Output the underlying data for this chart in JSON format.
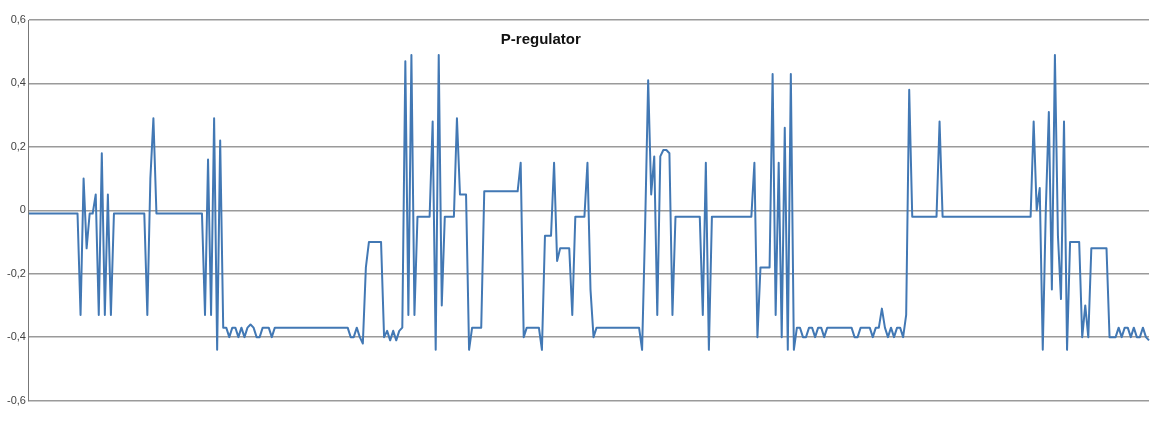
{
  "chart_data": {
    "type": "line",
    "title": "P-regulator",
    "categories": [
      null,
      null,
      null,
      null,
      null,
      null,
      null,
      null,
      null,
      null,
      null,
      null,
      null,
      null,
      null,
      null,
      null,
      null,
      null,
      null,
      null,
      null,
      null,
      null,
      null,
      null,
      null,
      null,
      null,
      null,
      null,
      null,
      null,
      null,
      null,
      null,
      null,
      null,
      null,
      null,
      null,
      null,
      null,
      null,
      null,
      null,
      null,
      null,
      null,
      null,
      null,
      null,
      null,
      null,
      null,
      null,
      null,
      null,
      null,
      null,
      null,
      null,
      null,
      null,
      null,
      null,
      null,
      null,
      null,
      null,
      null,
      null,
      null,
      null,
      null,
      null,
      null,
      null,
      null,
      null,
      null,
      null,
      null,
      null,
      null,
      null,
      null,
      null,
      null,
      null,
      null,
      null,
      null,
      null,
      null,
      null,
      null,
      null,
      null,
      null,
      null,
      null,
      null,
      null,
      null,
      null,
      null,
      null,
      null,
      null,
      null,
      null,
      null,
      null,
      null,
      null,
      null,
      null,
      null,
      null,
      null,
      null,
      null,
      null,
      null,
      null,
      null,
      null,
      null,
      null,
      null,
      null,
      null,
      null,
      null,
      null,
      null,
      null,
      null,
      null,
      null,
      null,
      null,
      null,
      null,
      null,
      null,
      null,
      null,
      null,
      null,
      null,
      null,
      null,
      null,
      null,
      null,
      null,
      null,
      null,
      null,
      null,
      null,
      null,
      null,
      null,
      null,
      null,
      null,
      null,
      null,
      null,
      null,
      null,
      null,
      null,
      null,
      null,
      null,
      null,
      null,
      null,
      null,
      null,
      null,
      null,
      null,
      null,
      null,
      null,
      null,
      null,
      null,
      null,
      null,
      null,
      null,
      null,
      null,
      null,
      null,
      null,
      null,
      null,
      null,
      null,
      null,
      null,
      null,
      null,
      null,
      null,
      null,
      null,
      null,
      null,
      null,
      null,
      null,
      null,
      null,
      null,
      null,
      null,
      null,
      null,
      null,
      null,
      null,
      null,
      null,
      null,
      null,
      null,
      null,
      null,
      null,
      null,
      null,
      null,
      null,
      null,
      null,
      null,
      null,
      null,
      null,
      null,
      null,
      null,
      null,
      null,
      null,
      null,
      null,
      null,
      null,
      null,
      null,
      null,
      null,
      null,
      null,
      null,
      null,
      null,
      null,
      null,
      null,
      null,
      null,
      null,
      null,
      null,
      null,
      null,
      null,
      null,
      null,
      null,
      null,
      null,
      null,
      null,
      null,
      null,
      null,
      null,
      null,
      null,
      null,
      null,
      null,
      null,
      null,
      null,
      null,
      null,
      null,
      null,
      null,
      null,
      null,
      null,
      null,
      null,
      null,
      null,
      null,
      null,
      null,
      null,
      null,
      null,
      null,
      null,
      null,
      null,
      null,
      null,
      null,
      null,
      null,
      null,
      null,
      null,
      null,
      null,
      null,
      null,
      null,
      null,
      null,
      null,
      null,
      null,
      null,
      null,
      null,
      null,
      null,
      null,
      null,
      null,
      null,
      null,
      null,
      null,
      null,
      null,
      null,
      null,
      null,
      null,
      null,
      null,
      null,
      null,
      null,
      null,
      null,
      null,
      null,
      null,
      null,
      null,
      null,
      null,
      null,
      null
    ],
    "values": [
      -0.01,
      -0.01,
      -0.01,
      -0.01,
      -0.01,
      -0.01,
      -0.01,
      -0.01,
      -0.01,
      -0.01,
      -0.01,
      -0.01,
      -0.01,
      -0.01,
      -0.01,
      -0.01,
      -0.01,
      -0.33,
      0.1,
      -0.12,
      -0.01,
      -0.01,
      0.05,
      -0.33,
      0.18,
      -0.33,
      0.05,
      -0.33,
      -0.01,
      -0.01,
      -0.01,
      -0.01,
      -0.01,
      -0.01,
      -0.01,
      -0.01,
      -0.01,
      -0.01,
      -0.01,
      -0.33,
      0.1,
      0.29,
      -0.01,
      -0.01,
      -0.01,
      -0.01,
      -0.01,
      -0.01,
      -0.01,
      -0.01,
      -0.01,
      -0.01,
      -0.01,
      -0.01,
      -0.01,
      -0.01,
      -0.01,
      -0.01,
      -0.33,
      0.16,
      -0.33,
      0.29,
      -0.44,
      0.22,
      -0.37,
      -0.37,
      -0.4,
      -0.37,
      -0.37,
      -0.4,
      -0.37,
      -0.4,
      -0.37,
      -0.36,
      -0.37,
      -0.4,
      -0.4,
      -0.37,
      -0.37,
      -0.37,
      -0.4,
      -0.37,
      -0.37,
      -0.37,
      -0.37,
      -0.37,
      -0.37,
      -0.37,
      -0.37,
      -0.37,
      -0.37,
      -0.37,
      -0.37,
      -0.37,
      -0.37,
      -0.37,
      -0.37,
      -0.37,
      -0.37,
      -0.37,
      -0.37,
      -0.37,
      -0.37,
      -0.37,
      -0.37,
      -0.37,
      -0.4,
      -0.4,
      -0.37,
      -0.4,
      -0.42,
      -0.18,
      -0.1,
      -0.1,
      -0.1,
      -0.1,
      -0.1,
      -0.4,
      -0.38,
      -0.41,
      -0.38,
      -0.41,
      -0.38,
      -0.37,
      0.47,
      -0.33,
      0.49,
      -0.33,
      -0.02,
      -0.02,
      -0.02,
      -0.02,
      -0.02,
      0.28,
      -0.44,
      0.49,
      -0.3,
      -0.02,
      -0.02,
      -0.02,
      -0.02,
      0.29,
      0.05,
      0.05,
      0.05,
      -0.44,
      -0.37,
      -0.37,
      -0.37,
      -0.37,
      0.06,
      0.06,
      0.06,
      0.06,
      0.06,
      0.06,
      0.06,
      0.06,
      0.06,
      0.06,
      0.06,
      0.06,
      0.15,
      -0.4,
      -0.37,
      -0.37,
      -0.37,
      -0.37,
      -0.37,
      -0.44,
      -0.08,
      -0.08,
      -0.08,
      0.15,
      -0.16,
      -0.12,
      -0.12,
      -0.12,
      -0.12,
      -0.33,
      -0.02,
      -0.02,
      -0.02,
      -0.02,
      0.15,
      -0.25,
      -0.4,
      -0.37,
      -0.37,
      -0.37,
      -0.37,
      -0.37,
      -0.37,
      -0.37,
      -0.37,
      -0.37,
      -0.37,
      -0.37,
      -0.37,
      -0.37,
      -0.37,
      -0.37,
      -0.44,
      -0.05,
      0.41,
      0.05,
      0.17,
      -0.33,
      0.17,
      0.19,
      0.19,
      0.18,
      -0.33,
      -0.02,
      -0.02,
      -0.02,
      -0.02,
      -0.02,
      -0.02,
      -0.02,
      -0.02,
      -0.02,
      -0.33,
      0.15,
      -0.44,
      -0.02,
      -0.02,
      -0.02,
      -0.02,
      -0.02,
      -0.02,
      -0.02,
      -0.02,
      -0.02,
      -0.02,
      -0.02,
      -0.02,
      -0.02,
      -0.02,
      0.15,
      -0.4,
      -0.18,
      -0.18,
      -0.18,
      -0.18,
      0.43,
      -0.33,
      0.15,
      -0.4,
      0.26,
      -0.44,
      0.43,
      -0.44,
      -0.37,
      -0.37,
      -0.4,
      -0.4,
      -0.37,
      -0.37,
      -0.4,
      -0.37,
      -0.37,
      -0.4,
      -0.37,
      -0.37,
      -0.37,
      -0.37,
      -0.37,
      -0.37,
      -0.37,
      -0.37,
      -0.37,
      -0.4,
      -0.4,
      -0.37,
      -0.37,
      -0.37,
      -0.37,
      -0.4,
      -0.37,
      -0.37,
      -0.31,
      -0.37,
      -0.4,
      -0.37,
      -0.4,
      -0.37,
      -0.37,
      -0.4,
      -0.33,
      0.38,
      -0.02,
      -0.02,
      -0.02,
      -0.02,
      -0.02,
      -0.02,
      -0.02,
      -0.02,
      -0.02,
      0.28,
      -0.02,
      -0.02,
      -0.02,
      -0.02,
      -0.02,
      -0.02,
      -0.02,
      -0.02,
      -0.02,
      -0.02,
      -0.02,
      -0.02,
      -0.02,
      -0.02,
      -0.02,
      -0.02,
      -0.02,
      -0.02,
      -0.02,
      -0.02,
      -0.02,
      -0.02,
      -0.02,
      -0.02,
      -0.02,
      -0.02,
      -0.02,
      -0.02,
      -0.02,
      -0.02,
      0.28,
      0,
      0.07,
      -0.44,
      0,
      0.31,
      -0.25,
      0.49,
      -0.08,
      -0.28,
      0.28,
      -0.44,
      -0.1,
      -0.1,
      -0.1,
      -0.1,
      -0.4,
      -0.3,
      -0.4,
      -0.12,
      -0.12,
      -0.12,
      -0.12,
      -0.12,
      -0.12,
      -0.4,
      -0.4,
      -0.4,
      -0.37,
      -0.4,
      -0.37,
      -0.37,
      -0.4,
      -0.37,
      -0.4,
      -0.4,
      -0.37,
      -0.4,
      -0.41
    ],
    "color": "#4278b4",
    "ylim": [
      -0.6,
      0.6
    ],
    "yticks": [
      {
        "value": -0.6,
        "label": "-0,6"
      },
      {
        "value": -0.4,
        "label": "-0,4"
      },
      {
        "value": -0.2,
        "label": "-0,2"
      },
      {
        "value": 0,
        "label": "0"
      },
      {
        "value": 0.2,
        "label": "0,2"
      },
      {
        "value": 0.4,
        "label": "0,4"
      },
      {
        "value": 0.6,
        "label": "0,6"
      }
    ],
    "grid": "y",
    "marker": "none",
    "line_style": "solid",
    "legend": false
  }
}
